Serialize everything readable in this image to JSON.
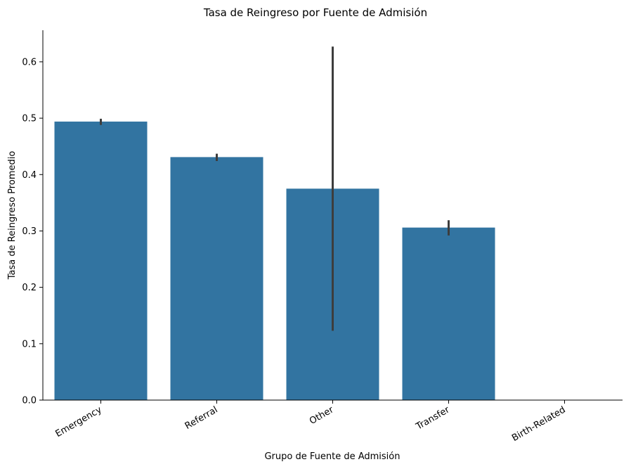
{
  "chart_data": {
    "type": "bar",
    "title": "Tasa de Reingreso por Fuente de Admisión",
    "xlabel": "Grupo de Fuente de Admisión",
    "ylabel": "Tasa de Reingreso Promedio",
    "categories": [
      "Emergency",
      "Referral",
      "Other",
      "Transfer",
      "Birth-Related"
    ],
    "values": [
      0.494,
      0.431,
      0.375,
      0.306,
      0.0
    ],
    "error_bars": [
      {
        "low": 0.488,
        "high": 0.499
      },
      {
        "low": 0.424,
        "high": 0.437
      },
      {
        "low": 0.123,
        "high": 0.627
      },
      {
        "low": 0.292,
        "high": 0.319
      },
      null
    ],
    "ylim": [
      0,
      0.656
    ],
    "yticks": [
      "0.0",
      "0.1",
      "0.2",
      "0.3",
      "0.4",
      "0.5",
      "0.6"
    ],
    "bar_color": "#3274a1",
    "errorbar_color": "#3d3d3d",
    "grid": false,
    "x_tick_rotation": "30 degrees"
  }
}
